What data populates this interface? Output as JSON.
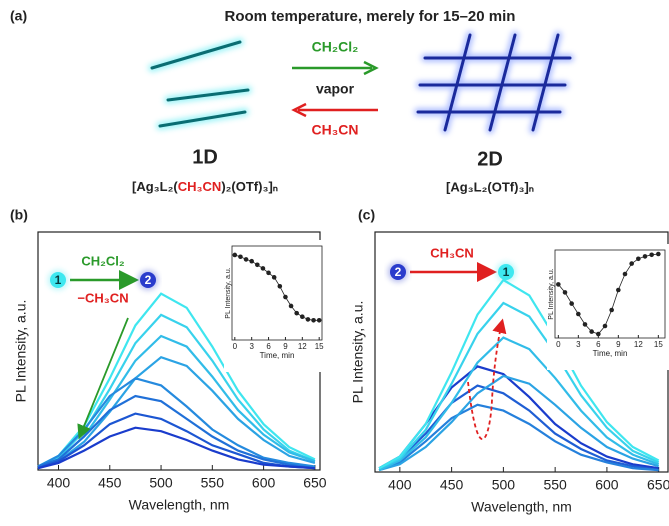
{
  "panel_a": {
    "label": "(a)",
    "title": "Room temperature, merely for 15–20 min",
    "forward": "CH₂Cl₂",
    "middle": "vapor",
    "backward": "CH₃CN",
    "left_name": "1D",
    "right_name": "2D",
    "left_formula": [
      "[Ag₃L₂(",
      "CH₃CN",
      ")₂(OTf)₃]ₙ"
    ],
    "right_formula": "[Ag₃L₂(OTf)₃]ₙ"
  },
  "chart_data": [
    {
      "type": "line",
      "panel": "(b)",
      "xlabel": "Wavelength, nm",
      "ylabel": "PL Intensity, a.u.",
      "x": [
        380,
        400,
        425,
        450,
        475,
        500,
        525,
        550,
        575,
        600,
        625,
        650
      ],
      "xlim": [
        380,
        655
      ],
      "ylim": [
        0,
        1.35
      ],
      "xticks": [
        400,
        450,
        500,
        550,
        600,
        650
      ],
      "annotations": {
        "start": "1",
        "end": "2",
        "above": "CH₂Cl₂",
        "below": "−CH₃CN"
      },
      "series": [
        {
          "color": "#3fe6ef",
          "values": [
            0.02,
            0.08,
            0.25,
            0.52,
            0.82,
            1.0,
            0.92,
            0.7,
            0.45,
            0.26,
            0.13,
            0.06
          ]
        },
        {
          "color": "#38d2ec",
          "values": [
            0.02,
            0.07,
            0.22,
            0.46,
            0.72,
            0.88,
            0.81,
            0.62,
            0.4,
            0.23,
            0.11,
            0.05
          ]
        },
        {
          "color": "#31bce8",
          "values": [
            0.02,
            0.06,
            0.19,
            0.4,
            0.62,
            0.76,
            0.7,
            0.53,
            0.34,
            0.2,
            0.1,
            0.05
          ]
        },
        {
          "color": "#2ba3e4",
          "values": [
            0.01,
            0.05,
            0.16,
            0.33,
            0.52,
            0.64,
            0.59,
            0.45,
            0.29,
            0.17,
            0.08,
            0.04
          ]
        },
        {
          "color": "#258ade",
          "values": [
            0.02,
            0.08,
            0.23,
            0.42,
            0.52,
            0.48,
            0.36,
            0.23,
            0.14,
            0.07,
            0.04,
            0.02
          ]
        },
        {
          "color": "#2070d8",
          "values": [
            0.02,
            0.06,
            0.19,
            0.34,
            0.42,
            0.39,
            0.29,
            0.19,
            0.11,
            0.06,
            0.03,
            0.01
          ]
        },
        {
          "color": "#1c56d2",
          "values": [
            0.01,
            0.05,
            0.14,
            0.26,
            0.32,
            0.29,
            0.22,
            0.14,
            0.09,
            0.04,
            0.02,
            0.01
          ]
        },
        {
          "color": "#1a3ccc",
          "values": [
            0.01,
            0.04,
            0.11,
            0.19,
            0.24,
            0.22,
            0.17,
            0.11,
            0.06,
            0.03,
            0.02,
            0.01
          ]
        }
      ]
    },
    {
      "type": "scatter",
      "xlabel": "Time, min",
      "ylabel": "PL Intensity, a.u.",
      "x": [
        0,
        1,
        2,
        3,
        4,
        5,
        6,
        7,
        8,
        9,
        10,
        11,
        12,
        13,
        14,
        15
      ],
      "values": [
        0.95,
        0.93,
        0.9,
        0.88,
        0.84,
        0.8,
        0.75,
        0.7,
        0.6,
        0.48,
        0.38,
        0.3,
        0.26,
        0.23,
        0.22,
        0.22
      ],
      "xlim": [
        -0.5,
        15.5
      ],
      "ylim": [
        0,
        1.05
      ],
      "xticks": [
        0,
        3,
        6,
        9,
        12,
        15
      ],
      "color": "#222"
    },
    {
      "type": "line",
      "panel": "(c)",
      "xlabel": "Wavelength, nm",
      "ylabel": "PL Intensity, a.u.",
      "x": [
        380,
        400,
        425,
        450,
        475,
        500,
        525,
        550,
        575,
        600,
        625,
        650
      ],
      "xlim": [
        376,
        659
      ],
      "ylim": [
        0,
        1.25
      ],
      "xticks": [
        400,
        450,
        500,
        550,
        600,
        650
      ],
      "annotations": {
        "start": "2",
        "end": "1",
        "above": "CH₃CN"
      },
      "series": [
        {
          "color": "#1a3ccc",
          "values": [
            0.02,
            0.08,
            0.25,
            0.44,
            0.55,
            0.51,
            0.39,
            0.25,
            0.15,
            0.08,
            0.04,
            0.02
          ]
        },
        {
          "color": "#1f5ed4",
          "values": [
            0.02,
            0.07,
            0.2,
            0.36,
            0.45,
            0.41,
            0.32,
            0.2,
            0.12,
            0.06,
            0.03,
            0.01
          ]
        },
        {
          "color": "#2580dc",
          "values": [
            0.01,
            0.05,
            0.16,
            0.28,
            0.35,
            0.32,
            0.25,
            0.16,
            0.09,
            0.05,
            0.02,
            0.01
          ]
        },
        {
          "color": "#2ba3e4",
          "values": [
            0.01,
            0.04,
            0.13,
            0.26,
            0.41,
            0.5,
            0.46,
            0.35,
            0.23,
            0.13,
            0.07,
            0.03
          ]
        },
        {
          "color": "#31bce8",
          "values": [
            0.01,
            0.06,
            0.18,
            0.36,
            0.57,
            0.7,
            0.64,
            0.49,
            0.32,
            0.18,
            0.09,
            0.04
          ]
        },
        {
          "color": "#38d2ec",
          "values": [
            0.02,
            0.07,
            0.22,
            0.46,
            0.72,
            0.88,
            0.81,
            0.62,
            0.4,
            0.23,
            0.11,
            0.05
          ]
        },
        {
          "color": "#3fe6ef",
          "values": [
            0.02,
            0.08,
            0.25,
            0.52,
            0.82,
            1.0,
            0.92,
            0.7,
            0.45,
            0.26,
            0.13,
            0.06
          ]
        }
      ]
    },
    {
      "type": "scatter",
      "xlabel": "Time, min",
      "ylabel": "PL Intensity, a.u.",
      "x": [
        0,
        1,
        2,
        3,
        4,
        5,
        6,
        7,
        8,
        9,
        10,
        11,
        12,
        13,
        14,
        15
      ],
      "values": [
        0.62,
        0.52,
        0.38,
        0.25,
        0.12,
        0.03,
        0.0,
        0.1,
        0.3,
        0.55,
        0.75,
        0.88,
        0.94,
        0.97,
        0.99,
        1.0
      ],
      "xlim": [
        -0.5,
        16
      ],
      "ylim": [
        -0.05,
        1.05
      ],
      "xticks": [
        0,
        3,
        6,
        9,
        12,
        15
      ],
      "color": "#222"
    }
  ]
}
